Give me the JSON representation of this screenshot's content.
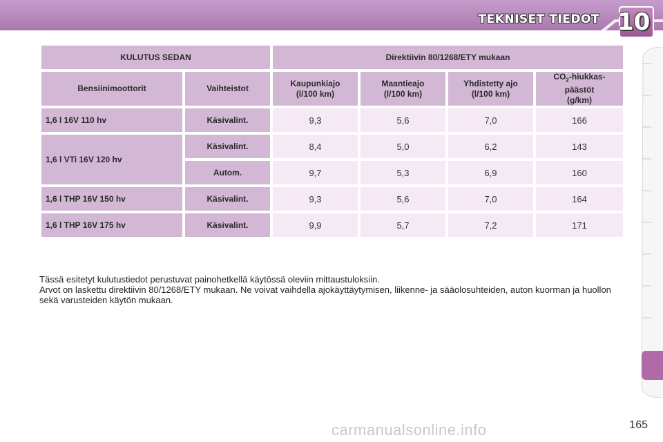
{
  "header": {
    "chapter_title": "TEKNISET TIEDOT",
    "chapter_number": "10",
    "colors": {
      "band": "#b889bd",
      "badge": "#b06aa8",
      "outline": "#3a3a3a"
    }
  },
  "table": {
    "title_left": "KULUTUS SEDAN",
    "title_right": "Direktiivin 80/1268/ETY mukaan",
    "col_engine": "Bensiinimoottorit",
    "col_gearbox": "Vaihteistot",
    "col_city_1": "Kaupunkiajo",
    "col_city_2": "(l/100 km)",
    "col_highway_1": "Maantieajo",
    "col_highway_2": "(l/100 km)",
    "col_combined_1": "Yhdistetty ajo",
    "col_combined_2": "(l/100 km)",
    "col_co2_pre": "CO",
    "col_co2_sub": "2",
    "col_co2_post": "-hiukkas-",
    "col_co2_2": "päästöt",
    "col_co2_3": "(g/km)",
    "rows": [
      {
        "engine": "1,6 l 16V 110 hv",
        "gearbox": "Käsivalint.",
        "city": "9,3",
        "highway": "5,6",
        "combined": "7,0",
        "co2": "166"
      },
      {
        "engine": "1,6 l VTi 16V 120 hv",
        "gearbox": "Käsivalint.",
        "city": "8,4",
        "highway": "5,0",
        "combined": "6,2",
        "co2": "143"
      },
      {
        "gearbox": "Autom.",
        "city": "9,7",
        "highway": "5,3",
        "combined": "6,9",
        "co2": "160"
      },
      {
        "engine": "1,6 l THP 16V 150 hv",
        "gearbox": "Käsivalint.",
        "city": "9,3",
        "highway": "5,6",
        "combined": "7,0",
        "co2": "164"
      },
      {
        "engine": "1,6 l THP 16V 175 hv",
        "gearbox": "Käsivalint.",
        "city": "9,9",
        "highway": "5,7",
        "combined": "7,2",
        "co2": "171"
      }
    ],
    "colors": {
      "header_bg": "#d3b8d6",
      "value_bg": "#f4e9f4"
    }
  },
  "notes": {
    "line1": "Tässä esitetyt kulutustiedot perustuvat painohetkellä käytössä oleviin mittaustuloksiin.",
    "line2": "Arvot on laskettu direktiivin 80/1268/ETY mukaan. Ne voivat vaihdella ajokäyttäytymisen, liikenne- ja sääolosuhteiden, auton kuorman ja huollon sekä varusteiden käytön mukaan."
  },
  "side_tabs": {
    "active_color": "#b06aa8"
  },
  "footer": {
    "page_number": "165",
    "watermark": "carmanualsonline.info"
  }
}
